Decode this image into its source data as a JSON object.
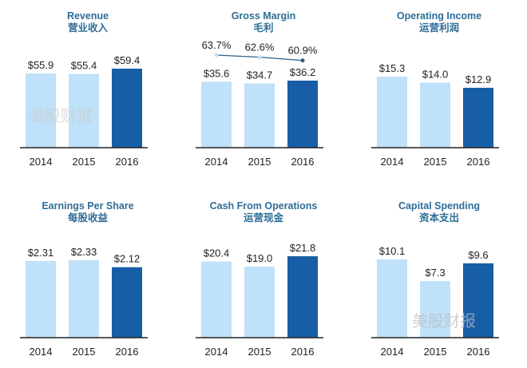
{
  "colors": {
    "prior": "#bfe1f9",
    "current": "#175ea6",
    "title": "#2f6d98",
    "axis": "#222222"
  },
  "watermark": "美股财报",
  "chart_data": [
    {
      "type": "bar",
      "title": "Revenue",
      "subtitle": "营业收入",
      "categories": [
        "2014",
        "2015",
        "2016"
      ],
      "values": [
        55.9,
        55.4,
        59.4
      ],
      "labels": [
        "$55.9",
        "$55.4",
        "$59.4"
      ]
    },
    {
      "type": "bar",
      "title": "Gross Margin",
      "subtitle": "毛利",
      "categories": [
        "2014",
        "2015",
        "2016"
      ],
      "values": [
        35.6,
        34.7,
        36.2
      ],
      "labels": [
        "$35.6",
        "$34.7",
        "$36.2"
      ],
      "line": {
        "values": [
          63.7,
          62.6,
          60.9
        ],
        "labels": [
          "63.7%",
          "62.6%",
          "60.9%"
        ]
      }
    },
    {
      "type": "bar",
      "title": "Operating Income",
      "subtitle": "运营利润",
      "categories": [
        "2014",
        "2015",
        "2016"
      ],
      "values": [
        15.3,
        14.0,
        12.9
      ],
      "labels": [
        "$15.3",
        "$14.0",
        "$12.9"
      ]
    },
    {
      "type": "bar",
      "title": "Earnings Per Share",
      "subtitle": "每股收益",
      "categories": [
        "2014",
        "2015",
        "2016"
      ],
      "values": [
        2.31,
        2.33,
        2.12
      ],
      "labels": [
        "$2.31",
        "$2.33",
        "$2.12"
      ]
    },
    {
      "type": "bar",
      "title": "Cash From Operations",
      "subtitle": "运营现金",
      "categories": [
        "2014",
        "2015",
        "2016"
      ],
      "values": [
        20.4,
        19.0,
        21.8
      ],
      "labels": [
        "$20.4",
        "$19.0",
        "$21.8"
      ]
    },
    {
      "type": "bar",
      "title": "Capital Spending",
      "subtitle": "资本支出",
      "categories": [
        "2014",
        "2015",
        "2016"
      ],
      "values": [
        10.1,
        7.3,
        9.6
      ],
      "labels": [
        "$10.1",
        "$7.3",
        "$9.6"
      ]
    }
  ]
}
